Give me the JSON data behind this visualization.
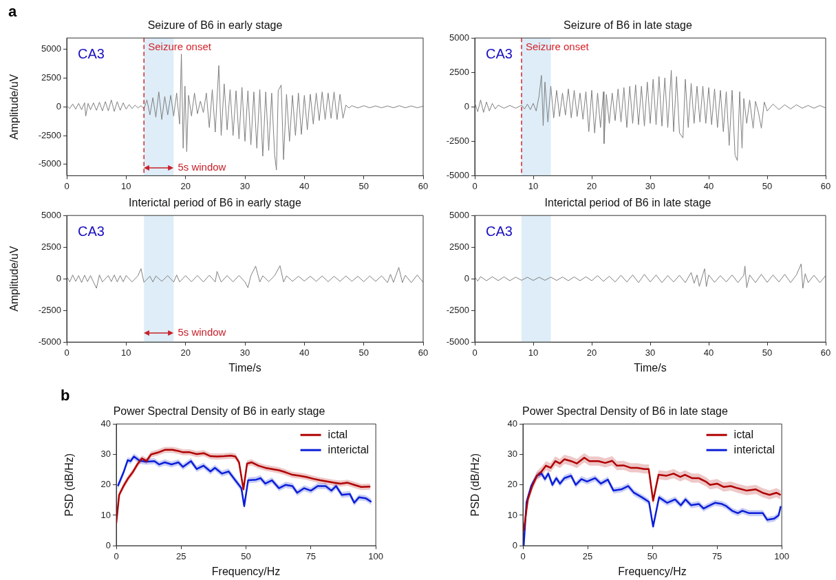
{
  "chart_data": [
    {
      "type": "line",
      "title": "Seizure of B6 in early stage",
      "ylabel": "Amplitude/uV",
      "xlim": [
        0,
        60
      ],
      "xticks": [
        0,
        10,
        20,
        30,
        40,
        50,
        60
      ],
      "ylim": [
        -6000,
        6000
      ],
      "yticks": [
        -5000,
        -2500,
        0,
        2500,
        5000
      ],
      "marker": "none",
      "x": [
        0,
        0.5,
        1,
        1.5,
        2,
        2.5,
        3,
        3.2,
        3.6,
        4,
        4.5,
        5,
        5.5,
        6,
        6.5,
        7,
        7.5,
        8,
        8.5,
        9,
        9.5,
        10,
        10.5,
        11,
        11.5,
        12,
        12.5,
        13,
        13.5,
        14,
        14.5,
        15,
        15.5,
        16,
        16.5,
        17,
        17.5,
        18,
        18.5,
        19,
        19.3,
        19.6,
        19.9,
        20.2,
        20.5,
        21,
        21.5,
        22,
        22.5,
        23,
        23.5,
        24,
        24.5,
        25,
        25.6,
        26,
        26.5,
        27,
        27.5,
        28,
        28.5,
        29,
        29.5,
        30,
        30.5,
        31,
        31.5,
        32,
        32.5,
        33,
        33.5,
        34,
        34.5,
        35,
        35.3,
        35.6,
        36.1,
        36.5,
        37,
        37.5,
        38,
        38.5,
        39,
        39.5,
        40,
        40.5,
        41,
        41.5,
        42,
        42.5,
        43,
        43.5,
        44,
        44.5,
        45,
        45.5,
        46,
        46.5,
        47,
        47.5,
        48,
        49,
        50,
        51,
        52,
        53,
        54,
        55,
        56,
        57,
        58,
        59,
        60
      ],
      "series": [
        {
          "color": "#7f7f7f",
          "values": [
            100,
            -150,
            250,
            -200,
            300,
            -250,
            350,
            -800,
            300,
            -250,
            350,
            -300,
            400,
            -350,
            450,
            -350,
            600,
            -400,
            450,
            -300,
            350,
            -200,
            200,
            -150,
            150,
            -100,
            100,
            -150,
            600,
            -700,
            800,
            -900,
            1300,
            -1100,
            900,
            -700,
            1000,
            -800,
            1200,
            -1500,
            4600,
            -3600,
            1800,
            -3900,
            1000,
            -800,
            1200,
            -600,
            500,
            -500,
            1200,
            -1800,
            1500,
            -2200,
            3600,
            -2500,
            2000,
            -2000,
            1500,
            -2500,
            1400,
            -2800,
            1700,
            -3000,
            1400,
            -3300,
            1300,
            -3600,
            1500,
            -4300,
            1300,
            -3800,
            1200,
            -4200,
            -5500,
            1400,
            1900,
            -4600,
            1100,
            -3000,
            1000,
            -2500,
            1200,
            -2400,
            1000,
            -2000,
            1100,
            -1500,
            1200,
            -1200,
            1300,
            -1100,
            1200,
            -1000,
            1300,
            -1100,
            1100,
            -1000,
            150,
            -100,
            100,
            -100,
            100,
            -80,
            80,
            -80,
            80,
            -80,
            100,
            -80,
            80,
            -80,
            60
          ]
        }
      ],
      "ref_lines": [
        {
          "axis": "x",
          "value": 13,
          "label": "Seizure onset",
          "color": "#d3232a",
          "line_style": "dashed"
        }
      ],
      "bands": [
        {
          "axis": "x",
          "from": 13,
          "to": 18,
          "color": "#deedf7"
        }
      ],
      "annotations": [
        "a",
        "CA3",
        {
          "text": "5s window",
          "x": 18,
          "y": -5300
        }
      ]
    },
    {
      "type": "line",
      "title": "Seizure of B6 in late stage",
      "xlim": [
        0,
        60
      ],
      "xticks": [
        0,
        10,
        20,
        30,
        40,
        50,
        60
      ],
      "ylim": [
        -5000,
        5000
      ],
      "yticks": [
        -5000,
        -2500,
        0,
        2500,
        5000
      ],
      "marker": "none",
      "x": [
        0,
        0.5,
        1,
        1.5,
        2,
        2.5,
        3,
        3.5,
        4,
        5,
        6,
        7,
        8,
        8.5,
        9,
        9.5,
        10,
        10.5,
        11,
        11.4,
        11.7,
        12,
        12.5,
        13,
        13.5,
        14,
        14.5,
        15,
        15.5,
        16,
        16.5,
        17,
        17.5,
        18,
        18.5,
        19,
        19.5,
        20,
        20.5,
        21,
        21.5,
        22,
        22.1,
        22.5,
        23,
        23.5,
        24,
        24.5,
        25,
        25.5,
        26,
        26.5,
        27,
        27.5,
        28,
        28.5,
        29,
        29.5,
        30,
        30.5,
        31,
        31.5,
        32,
        32.5,
        33,
        33.6,
        34,
        34.5,
        35,
        35.6,
        36,
        36.5,
        37,
        37.5,
        38,
        38.5,
        39,
        39.5,
        40,
        40.5,
        41,
        41.5,
        42,
        42.5,
        43,
        43.5,
        44,
        44.5,
        44.9,
        45.3,
        45.7,
        46,
        46.5,
        47,
        47.6,
        48,
        48.5,
        49,
        49.5,
        50,
        51,
        52,
        53,
        54,
        55,
        56,
        57,
        58,
        59,
        60
      ],
      "series": [
        {
          "color": "#7f7f7f",
          "values": [
            300,
            -350,
            500,
            -400,
            350,
            -300,
            250,
            -150,
            120,
            -100,
            100,
            -100,
            120,
            -150,
            200,
            -200,
            250,
            -300,
            800,
            2280,
            -1360,
            1800,
            -1100,
            1500,
            -800,
            1200,
            -700,
            1000,
            -600,
            1300,
            -800,
            1200,
            -700,
            1000,
            -900,
            1100,
            -1800,
            1200,
            -1900,
            1000,
            -1500,
            1100,
            -2670,
            900,
            -1200,
            1000,
            -1000,
            1300,
            -1100,
            1400,
            -1500,
            1500,
            -1200,
            1600,
            -1300,
            1500,
            -1400,
            1800,
            -1200,
            2000,
            -1300,
            2200,
            -1400,
            2100,
            -1500,
            2650,
            -1800,
            2200,
            -1900,
            -2250,
            2000,
            -1500,
            1700,
            -1200,
            1500,
            -1100,
            1500,
            -1200,
            1400,
            -1300,
            1300,
            -1500,
            1200,
            -1800,
            1100,
            -2800,
            1200,
            -3500,
            -3900,
            1100,
            -3000,
            600,
            -1200,
            500,
            -1550,
            400,
            -400,
            -1550,
            350,
            -300,
            200,
            -200,
            150,
            -150,
            150,
            -100,
            100,
            -100,
            100,
            -80
          ]
        }
      ],
      "ref_lines": [
        {
          "axis": "x",
          "value": 8,
          "label": "Seizure onset",
          "color": "#d3232a",
          "line_style": "dashed"
        }
      ],
      "bands": [
        {
          "axis": "x",
          "from": 8,
          "to": 13,
          "color": "#deedf7"
        }
      ],
      "annotations": [
        "CA3"
      ]
    },
    {
      "type": "line",
      "title": "Interictal period of B6 in early stage",
      "xlabel": "Time/s",
      "ylabel": "Amplitude/uV",
      "xlim": [
        0,
        60
      ],
      "xticks": [
        0,
        10,
        20,
        30,
        40,
        50,
        60
      ],
      "ylim": [
        -5000,
        5000
      ],
      "yticks": [
        -5000,
        -2500,
        0,
        2500,
        5000
      ],
      "marker": "none",
      "x": [
        0,
        0.5,
        1,
        1.5,
        2,
        2.5,
        3,
        3.5,
        4,
        4.5,
        5,
        5.5,
        6,
        7,
        7.5,
        8,
        8.5,
        9,
        9.5,
        10,
        11,
        12,
        12.5,
        13,
        14,
        14.5,
        15,
        16,
        17,
        18,
        18.5,
        19,
        20,
        21,
        22,
        23,
        24,
        25,
        25.3,
        26,
        27,
        28,
        29,
        30,
        30.5,
        31,
        31.8,
        32.5,
        33,
        34,
        35,
        35.9,
        36.5,
        37,
        38,
        39,
        40,
        41,
        42,
        43,
        44,
        45,
        46,
        47,
        48,
        49,
        50,
        51,
        52,
        53,
        54,
        54.5,
        55,
        55.9,
        56.5,
        57,
        58,
        59,
        60
      ],
      "series": [
        {
          "color": "#7f7f7f",
          "values": [
            200,
            -250,
            300,
            -200,
            250,
            -300,
            280,
            -220,
            250,
            -250,
            -750,
            300,
            -250,
            250,
            -220,
            300,
            -250,
            250,
            -230,
            260,
            -250,
            250,
            800,
            -280,
            200,
            -250,
            220,
            -200,
            250,
            -260,
            300,
            -250,
            250,
            -230,
            260,
            -250,
            280,
            -250,
            580,
            -260,
            250,
            -240,
            260,
            -250,
            -700,
            250,
            1000,
            -250,
            240,
            -220,
            250,
            1030,
            -250,
            230,
            -200,
            200,
            -180,
            200,
            -200,
            220,
            -230,
            200,
            -200,
            220,
            -200,
            200,
            -230,
            220,
            -200,
            230,
            -300,
            350,
            -280,
            900,
            -300,
            280,
            -300,
            300,
            -280
          ]
        }
      ],
      "bands": [
        {
          "axis": "x",
          "from": 13,
          "to": 18,
          "color": "#deedf7"
        }
      ],
      "annotations": [
        "CA3",
        {
          "text": "5s window",
          "x": 18,
          "y": -4300
        }
      ]
    },
    {
      "type": "line",
      "title": "Interictal period of B6 in late stage",
      "xlabel": "Time/s",
      "xlim": [
        0,
        60
      ],
      "xticks": [
        0,
        10,
        20,
        30,
        40,
        50,
        60
      ],
      "ylim": [
        -5000,
        5000
      ],
      "yticks": [
        -5000,
        -2500,
        0,
        2500,
        5000
      ],
      "marker": "none",
      "x": [
        0,
        0.5,
        1,
        2,
        3,
        4,
        5,
        6,
        7,
        8,
        9,
        10,
        11,
        12,
        13,
        14,
        15,
        16,
        17,
        18,
        19,
        20,
        21,
        22,
        23,
        24,
        25,
        26,
        27,
        28,
        29,
        30,
        31,
        32,
        33,
        34,
        35,
        36,
        37,
        37.5,
        38,
        38.4,
        39,
        39.3,
        39.6,
        40,
        41,
        42,
        43,
        44,
        45,
        46,
        46.2,
        46.5,
        47,
        48,
        49,
        50,
        51,
        52,
        53,
        54,
        55,
        55.8,
        56.1,
        56.5,
        57,
        58,
        59,
        60
      ],
      "series": [
        {
          "color": "#7f7f7f",
          "values": [
            150,
            -180,
            170,
            -150,
            160,
            -140,
            150,
            -150,
            130,
            -120,
            120,
            -130,
            120,
            -120,
            130,
            -130,
            140,
            -150,
            150,
            -150,
            160,
            -150,
            250,
            -200,
            200,
            -250,
            280,
            -250,
            300,
            -300,
            350,
            -250,
            300,
            -300,
            250,
            -250,
            280,
            -300,
            500,
            -350,
            300,
            -600,
            350,
            790,
            -620,
            300,
            -280,
            250,
            -250,
            300,
            -300,
            280,
            1000,
            -700,
            300,
            -300,
            350,
            -280,
            300,
            -250,
            350,
            -300,
            300,
            1170,
            -750,
            400,
            -300,
            280,
            -300,
            250
          ]
        }
      ],
      "bands": [
        {
          "axis": "x",
          "from": 8,
          "to": 13,
          "color": "#deedf7"
        }
      ],
      "annotations": [
        "CA3"
      ]
    },
    {
      "type": "line",
      "title": "Power Spectral Density of B6 in early stage",
      "xlabel": "Frequency/Hz",
      "ylabel": "PSD (dB/Hz)",
      "xlim": [
        0,
        100
      ],
      "xticks": [
        0,
        25,
        50,
        75,
        100
      ],
      "ylim": [
        0,
        40
      ],
      "yticks": [
        0,
        10,
        20,
        30,
        40
      ],
      "marker": "none",
      "legend": "top right",
      "series": [
        {
          "name": "ictal",
          "color": "#b00000",
          "x": [
            0,
            1.1,
            2.8,
            4.6,
            6.3,
            8.1,
            9.9,
            11.6,
            13.4,
            16,
            18.7,
            21.7,
            24,
            25.7,
            28.3,
            31,
            33.7,
            36.3,
            38.9,
            41.5,
            44.2,
            45.9,
            47.3,
            49,
            50.4,
            52.1,
            54.8,
            57.4,
            60,
            62.7,
            65.3,
            67.9,
            70.6,
            73.2,
            75.9,
            78.5,
            81.2,
            83.8,
            86.4,
            89.1,
            91.7,
            94.4,
            97.9
          ],
          "values": [
            7.4,
            16.7,
            19.6,
            22.2,
            24.1,
            26.7,
            28.7,
            27.8,
            30,
            30.6,
            31.5,
            31.5,
            31.1,
            30.7,
            30.7,
            30.1,
            30.4,
            29.4,
            29.3,
            29.4,
            29.6,
            29.3,
            27.4,
            18.5,
            27,
            27.4,
            26.3,
            25.6,
            25.2,
            24.8,
            24.1,
            23.3,
            23,
            22.6,
            22,
            21.5,
            21.1,
            20.7,
            20.4,
            20.7,
            20,
            19.3,
            19.4
          ],
          "upper": [
            8.4,
            17.7,
            20.6,
            23.2,
            25.1,
            27.7,
            29.7,
            28.8,
            31,
            31.6,
            32.5,
            32.5,
            32.1,
            31.7,
            31.7,
            31.1,
            31.4,
            30.4,
            30.3,
            30.4,
            30.6,
            30.3,
            28.4,
            19.5,
            28,
            28.4,
            27.3,
            26.6,
            26.2,
            25.8,
            25.1,
            24.3,
            24,
            23.6,
            23,
            22.5,
            22.1,
            21.7,
            21.4,
            21.7,
            21,
            20.3,
            20.4
          ],
          "lower": [
            6.4,
            15.7,
            18.6,
            21.2,
            23.1,
            25.7,
            27.7,
            26.8,
            29,
            29.6,
            30.5,
            30.5,
            30.1,
            29.7,
            29.7,
            29.1,
            29.4,
            28.4,
            28.3,
            28.4,
            28.6,
            28.3,
            26.4,
            17.5,
            26,
            26.4,
            25.3,
            24.6,
            24.2,
            23.8,
            23.1,
            22.3,
            22,
            21.6,
            21,
            20.5,
            20.1,
            19.7,
            19.4,
            19.7,
            19,
            18.3,
            18.4
          ]
        },
        {
          "name": "interictal",
          "color": "#0a1ed8",
          "x": [
            0,
            0.6,
            2.8,
            4.4,
            5.5,
            6.8,
            9,
            11.6,
            14.7,
            16.5,
            18.7,
            21.3,
            23.9,
            25.7,
            28.8,
            31,
            33.6,
            36.3,
            38,
            40.7,
            43.3,
            45.5,
            48.2,
            49.3,
            50.8,
            53.9,
            55.6,
            57.4,
            60,
            62.7,
            65.3,
            67.9,
            69.7,
            72.4,
            75,
            77.6,
            80.7,
            82.9,
            84.7,
            86.9,
            90,
            91.7,
            93.5,
            96.1,
            98.3
          ],
          "values": [
            null,
            19.6,
            24.1,
            28.1,
            27.8,
            29.3,
            27.9,
            27.6,
            27.8,
            26.7,
            27.4,
            26.7,
            27.4,
            25.9,
            27.8,
            25.2,
            26.3,
            24.4,
            25.6,
            23.7,
            24.4,
            21.9,
            18.9,
            13,
            21.5,
            21.7,
            22.2,
            20.4,
            21.5,
            18.9,
            20,
            19.6,
            17.4,
            18.9,
            18.1,
            19.6,
            19.6,
            18.1,
            19.6,
            16.7,
            17,
            14.1,
            15.9,
            15.6,
            14.4
          ],
          "upper": [
            8.4,
            20.6,
            25.1,
            29.1,
            28.8,
            30.3,
            28.9,
            28.6,
            28.8,
            27.7,
            28.4,
            27.7,
            28.4,
            26.9,
            28.8,
            26.2,
            27.3,
            25.4,
            26.6,
            24.7,
            25.4,
            22.9,
            19.9,
            14,
            22.5,
            22.7,
            23.2,
            21.4,
            22.5,
            19.9,
            21,
            20.6,
            18.4,
            19.9,
            19.1,
            20.6,
            20.6,
            19.1,
            20.6,
            17.7,
            18,
            15.1,
            16.9,
            16.6,
            15.4
          ],
          "lower": [
            6.4,
            18.6,
            23.1,
            27.1,
            26.8,
            28.3,
            26.9,
            26.6,
            26.8,
            25.7,
            26.4,
            25.7,
            26.4,
            24.9,
            26.8,
            24.2,
            25.3,
            23.4,
            24.6,
            22.7,
            23.4,
            20.9,
            17.9,
            12,
            20.5,
            20.7,
            21.2,
            19.4,
            20.5,
            17.9,
            19,
            18.6,
            16.4,
            17.9,
            17.1,
            18.6,
            18.6,
            17.1,
            18.6,
            15.7,
            16,
            13.1,
            14.9,
            14.6,
            13.4
          ]
        }
      ],
      "annotations": [
        "b"
      ]
    },
    {
      "type": "line",
      "title": "Power Spectral Density of B6 in late stage",
      "xlabel": "Frequency/Hz",
      "ylabel": "PSD (dB/Hz)",
      "xlim": [
        0,
        100
      ],
      "xticks": [
        0,
        25,
        50,
        75,
        100
      ],
      "ylim": [
        0,
        40
      ],
      "yticks": [
        0,
        10,
        20,
        30,
        40
      ],
      "marker": "none",
      "legend": "top right",
      "series": [
        {
          "name": "ictal",
          "color": "#b00000",
          "x": [
            0.3,
            1.9,
            3.6,
            5.4,
            7.2,
            8.9,
            10.7,
            12.5,
            14.3,
            16,
            18.6,
            20.8,
            23.7,
            25.7,
            29.2,
            31.8,
            34.5,
            36.3,
            38.9,
            41.6,
            44.2,
            46.9,
            48.6,
            50.3,
            52.4,
            55.5,
            58.2,
            60.8,
            62.6,
            65.3,
            67.9,
            70.6,
            72.3,
            75,
            77.6,
            80.3,
            82.9,
            86.5,
            90,
            92.6,
            95.3,
            97.9,
            99.6
          ],
          "values": [
            4.8,
            15.2,
            19.6,
            23,
            24.4,
            26.3,
            25.6,
            27.8,
            27,
            28.4,
            27.8,
            27,
            28.9,
            27.8,
            27.8,
            27.2,
            27.9,
            26.3,
            26.4,
            25.6,
            25.6,
            25.2,
            25.2,
            14.8,
            23.3,
            23,
            23.7,
            22.6,
            23.3,
            22.2,
            22.2,
            21.1,
            20,
            20.4,
            19.3,
            19.6,
            18.9,
            18.1,
            18.5,
            17.4,
            16.7,
            17.4,
            16.7
          ],
          "upper": [
            6.3,
            16.7,
            21.1,
            24.5,
            25.9,
            27.8,
            27.1,
            29.3,
            28.5,
            29.9,
            29.3,
            28.5,
            30.4,
            29.3,
            29.3,
            28.7,
            29.4,
            27.8,
            27.9,
            27.1,
            27.1,
            26.7,
            26.7,
            16.3,
            24.8,
            24.5,
            25.2,
            24.1,
            24.8,
            23.7,
            23.7,
            22.6,
            21.5,
            21.9,
            20.8,
            21.1,
            20.4,
            19.6,
            20,
            18.9,
            18.2,
            18.9,
            18.2
          ],
          "lower": [
            3.3,
            13.7,
            18.1,
            21.5,
            22.9,
            24.8,
            24.1,
            26.3,
            25.5,
            26.9,
            26.3,
            25.5,
            27.4,
            26.3,
            26.3,
            25.7,
            26.4,
            24.8,
            24.9,
            24.1,
            24.1,
            23.7,
            23.7,
            13.3,
            21.8,
            21.5,
            22.2,
            21.1,
            21.8,
            20.7,
            20.7,
            19.6,
            18.5,
            18.9,
            17.8,
            18.1,
            17.4,
            16.6,
            17,
            15.9,
            15.2,
            15.9,
            15.2
          ]
        },
        {
          "name": "interictal",
          "color": "#0a1ed8",
          "x": [
            0.3,
            1.4,
            3.2,
            5.4,
            7.2,
            8.5,
            9.8,
            11.4,
            12.9,
            14.3,
            16,
            18.6,
            20.4,
            22.6,
            24.8,
            27.9,
            30.1,
            32.8,
            35,
            38,
            40.7,
            42.9,
            46,
            48.7,
            50.3,
            52.6,
            55.7,
            58.8,
            61,
            62.8,
            65,
            68,
            69.8,
            71.6,
            74.2,
            76.9,
            78.6,
            80.8,
            83,
            84.8,
            87.4,
            90,
            92.7,
            94.4,
            97.1,
            98.8,
            99.6
          ],
          "values": [
            0,
            14.4,
            19.6,
            23,
            23.7,
            21.9,
            23.7,
            20,
            22.2,
            20.4,
            22.2,
            23,
            20,
            21.9,
            21.1,
            22.2,
            20.4,
            21.7,
            18.1,
            18.5,
            19.6,
            17.4,
            15.9,
            14.4,
            6.3,
            15.9,
            14.1,
            15.2,
            13.3,
            15.2,
            13.3,
            13.7,
            12.2,
            13,
            14.1,
            13.7,
            13,
            11.5,
            10.7,
            11.5,
            10.7,
            10.7,
            10.7,
            8.5,
            8.9,
            10,
            13
          ],
          "upper": [
            1,
            15.4,
            20.6,
            24,
            24.7,
            22.9,
            24.7,
            21,
            23.2,
            21.4,
            23.2,
            24,
            21,
            22.9,
            22.1,
            23.2,
            21.4,
            22.7,
            19.1,
            19.5,
            20.6,
            18.4,
            16.9,
            15.4,
            7.3,
            16.9,
            15.1,
            16.2,
            14.3,
            16.2,
            14.3,
            14.7,
            13.2,
            14,
            15.1,
            14.7,
            14,
            12.5,
            11.7,
            12.5,
            11.7,
            11.7,
            11.7,
            9.5,
            9.9,
            11,
            14
          ],
          "lower": [
            0,
            13.4,
            18.6,
            22,
            22.7,
            20.9,
            22.7,
            19,
            21.2,
            19.4,
            21.2,
            22,
            19,
            20.9,
            20.1,
            21.2,
            19.4,
            20.7,
            17.1,
            17.5,
            18.6,
            16.4,
            14.9,
            13.4,
            5.3,
            14.9,
            13.1,
            14.2,
            12.3,
            14.2,
            12.3,
            12.7,
            11.2,
            12,
            13.1,
            12.7,
            12,
            10.5,
            9.7,
            10.5,
            9.7,
            9.7,
            9.7,
            7.5,
            7.9,
            9,
            12
          ]
        }
      ]
    }
  ]
}
